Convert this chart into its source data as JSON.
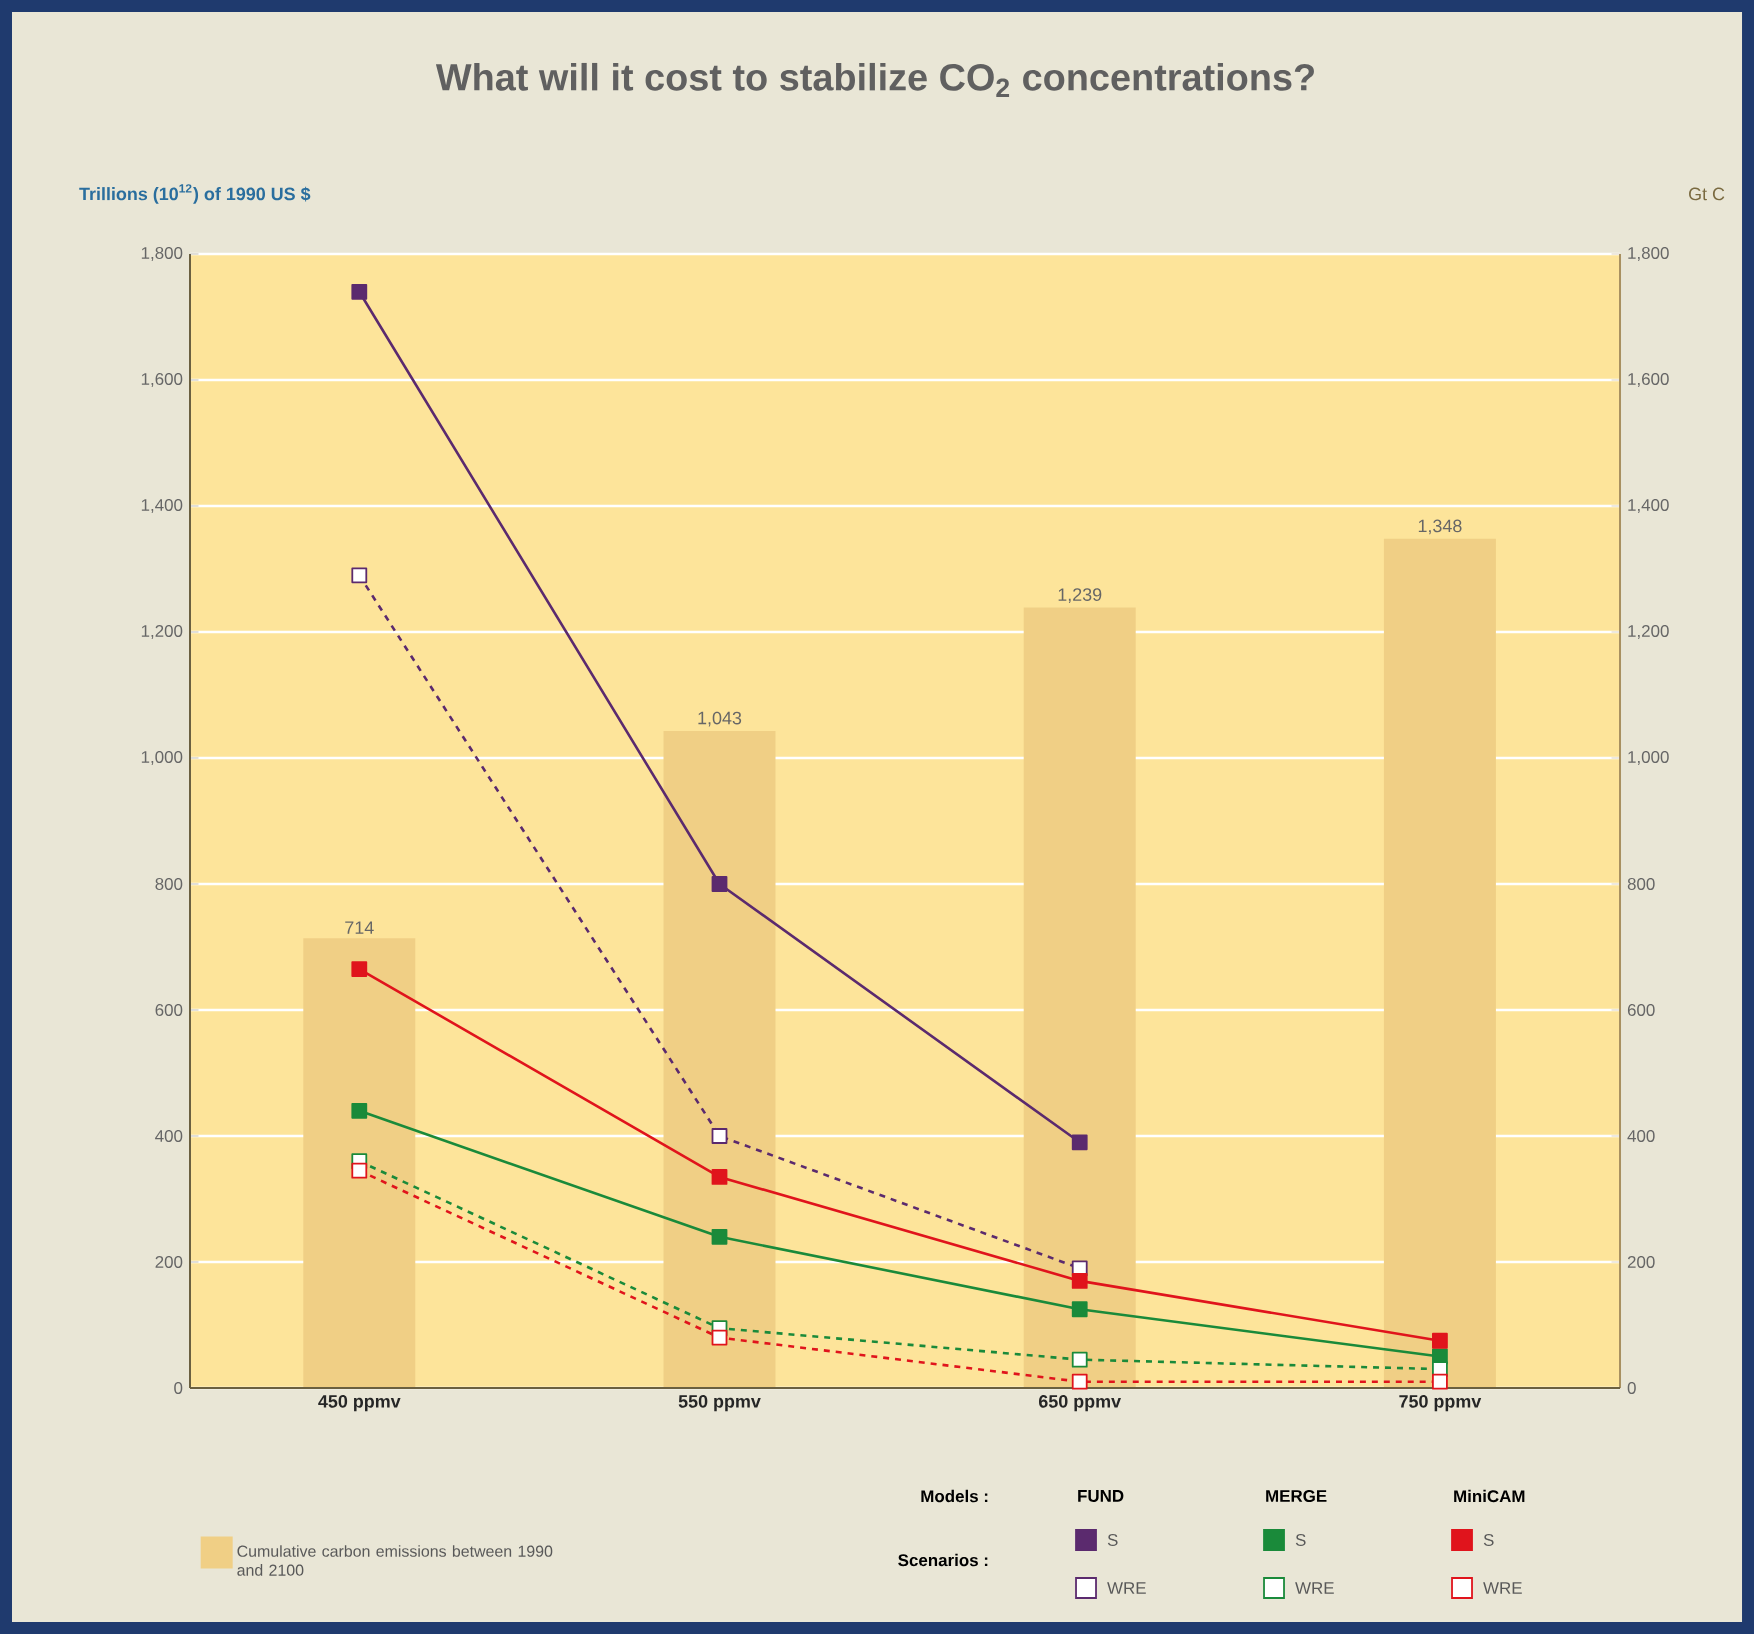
{
  "chart_data": {
    "type": "line",
    "title": "What will it cost to stabilize CO$_{2}$ concentrations?",
    "ylabel": "Trillions (10$^{12}$) of 1990 US $",
    "y2label": "Gt C",
    "categories": [
      "450 ppmv",
      "550 ppmv",
      "650 ppmv",
      "750 ppmv"
    ],
    "ylim": [
      0,
      1800
    ],
    "yticks": [
      0,
      {
        "value": 200,
        "label": "200"
      },
      {
        "value": 400,
        "label": "400"
      },
      {
        "value": 600,
        "label": "600"
      },
      {
        "value": 800,
        "label": "800"
      },
      {
        "value": 1000,
        "label": "1,000"
      },
      {
        "value": 1200,
        "label": "1,200"
      },
      {
        "value": 1400,
        "label": "1,400"
      },
      {
        "value": 1600,
        "label": "1,600"
      },
      {
        "value": 1800,
        "label": "1,800"
      }
    ],
    "y2lim": [
      0,
      1800
    ],
    "y2ticks": [
      0,
      {
        "value": 200,
        "label": "200"
      },
      {
        "value": 400,
        "label": "400"
      },
      {
        "value": 600,
        "label": "600"
      },
      {
        "value": 800,
        "label": "800"
      },
      {
        "value": 1000,
        "label": "1,000"
      },
      {
        "value": 1200,
        "label": "1,200"
      },
      {
        "value": 1400,
        "label": "1,400"
      },
      {
        "value": 1600,
        "label": "1,600"
      },
      {
        "value": 1800,
        "label": "1,800"
      }
    ],
    "grid": "y",
    "legend": "bottom",
    "marker": "square",
    "annotations": [
      "Models :",
      "Scenarios :",
      "FUND",
      "MERGE",
      "MiniCAM"
    ],
    "series": [
      {
        "name": "Cumulative carbon emissions between 1990 and 2100",
        "type": "bar",
        "axis": "y2",
        "color": "#f0cf85",
        "values": [
          714,
          1043,
          1239,
          1348
        ],
        "value_labels": [
          "714",
          "1,043",
          "1,239",
          "1,348"
        ]
      },
      {
        "name": "S",
        "color": "#5b2a6e",
        "line_style": "solid",
        "values": [
          1740,
          800,
          390,
          null
        ]
      },
      {
        "name": "WRE",
        "color": "#5b2a6e",
        "line_style": "dashed",
        "values": [
          1290,
          400,
          190,
          null
        ]
      },
      {
        "name": "S",
        "color": "#1a8a3a",
        "line_style": "solid",
        "values": [
          440,
          240,
          125,
          50
        ]
      },
      {
        "name": "WRE",
        "color": "#1a8a3a",
        "line_style": "dashed",
        "values": [
          360,
          95,
          45,
          30
        ]
      },
      {
        "name": "S",
        "color": "#e0141c",
        "line_style": "solid",
        "values": [
          665,
          335,
          170,
          75
        ]
      },
      {
        "name": "WRE",
        "color": "#e0141c",
        "line_style": "dashed",
        "values": [
          345,
          80,
          10,
          10
        ]
      }
    ]
  }
}
